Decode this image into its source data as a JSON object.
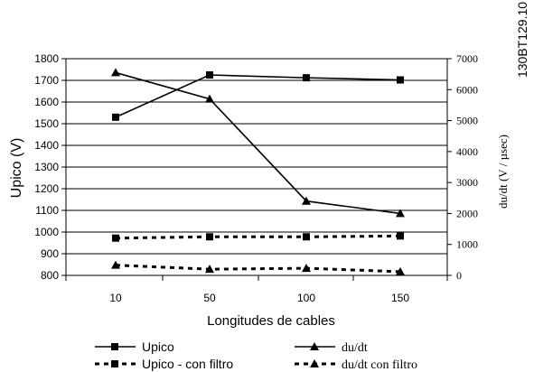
{
  "chart_data": {
    "type": "line",
    "x_categories": [
      "10",
      "50",
      "100",
      "150"
    ],
    "xlabel": "Longitudes de cables",
    "ylabel_left": "Upico (V)",
    "ylabel_right": "du/dt (V / µsec)",
    "y_left": {
      "min": 800,
      "max": 1800,
      "step": 100
    },
    "y_right": {
      "min": 0,
      "max": 7000,
      "step": 1000
    },
    "figure_id": "130BT129.10",
    "series": [
      {
        "name": "Upico",
        "axis": "left",
        "marker": "square",
        "line": "solid",
        "values": [
          1530,
          1725,
          1712,
          1702
        ]
      },
      {
        "name": "du/dt",
        "axis": "right",
        "marker": "triangle",
        "line": "solid",
        "values": [
          6550,
          5700,
          2400,
          2000
        ]
      },
      {
        "name": "Upico - con filtro",
        "axis": "left",
        "marker": "square",
        "line": "dashed",
        "values": [
          972,
          978,
          978,
          982
        ]
      },
      {
        "name": "du/dt con filtro",
        "axis": "right",
        "marker": "triangle",
        "line": "dashed",
        "values": [
          330,
          200,
          230,
          120
        ]
      }
    ],
    "grid": "horizontal",
    "legend_position": "bottom",
    "colors": {
      "line": "#000000"
    }
  }
}
